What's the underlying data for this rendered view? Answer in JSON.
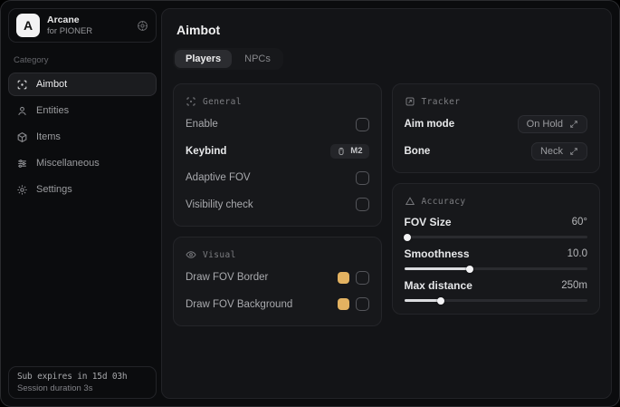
{
  "app": {
    "name": "Arcane",
    "subtitle": "for PIONER",
    "logo_letter": "A"
  },
  "colors": {
    "accent_swatch": "#e3b261",
    "active_item_bg": "#1b1c1f",
    "panel_bg": "#17181b"
  },
  "sidebar": {
    "category_label": "Category",
    "items": [
      {
        "label": "Aimbot",
        "icon": "crosshair-scan-icon",
        "active": true
      },
      {
        "label": "Entities",
        "icon": "entities-icon",
        "active": false
      },
      {
        "label": "Items",
        "icon": "box-icon",
        "active": false
      },
      {
        "label": "Miscellaneous",
        "icon": "sliders-icon",
        "active": false
      },
      {
        "label": "Settings",
        "icon": "gear-icon",
        "active": false
      }
    ],
    "subscription": {
      "line1": "Sub expires in 15d 03h",
      "line2": "Session duration 3s"
    }
  },
  "main": {
    "title": "Aimbot",
    "tabs": [
      {
        "label": "Players",
        "active": true
      },
      {
        "label": "NPCs",
        "active": false
      }
    ],
    "panels": {
      "general": {
        "title": "General",
        "rows": [
          {
            "label": "Enable",
            "control": "checkbox",
            "checked": false
          },
          {
            "label": "Keybind",
            "control": "keybind",
            "value": "M2"
          },
          {
            "label": "Adaptive FOV",
            "control": "checkbox",
            "checked": false
          },
          {
            "label": "Visibility check",
            "control": "checkbox",
            "checked": false
          }
        ]
      },
      "visual": {
        "title": "Visual",
        "rows": [
          {
            "label": "Draw FOV Border",
            "control": "color+checkbox",
            "color": "#e3b261",
            "checked": false
          },
          {
            "label": "Draw FOV Background",
            "control": "color+checkbox",
            "color": "#e3b261",
            "checked": false
          }
        ]
      },
      "tracker": {
        "title": "Tracker",
        "rows": [
          {
            "label": "Aim mode",
            "control": "dropdown",
            "value": "On Hold"
          },
          {
            "label": "Bone",
            "control": "dropdown",
            "value": "Neck"
          }
        ]
      },
      "accuracy": {
        "title": "Accuracy",
        "sliders": [
          {
            "label": "FOV Size",
            "value": "60°",
            "percent": 1.5
          },
          {
            "label": "Smoothness",
            "value": "10.0",
            "percent": 36
          },
          {
            "label": "Max distance",
            "value": "250m",
            "percent": 20
          }
        ]
      }
    }
  }
}
